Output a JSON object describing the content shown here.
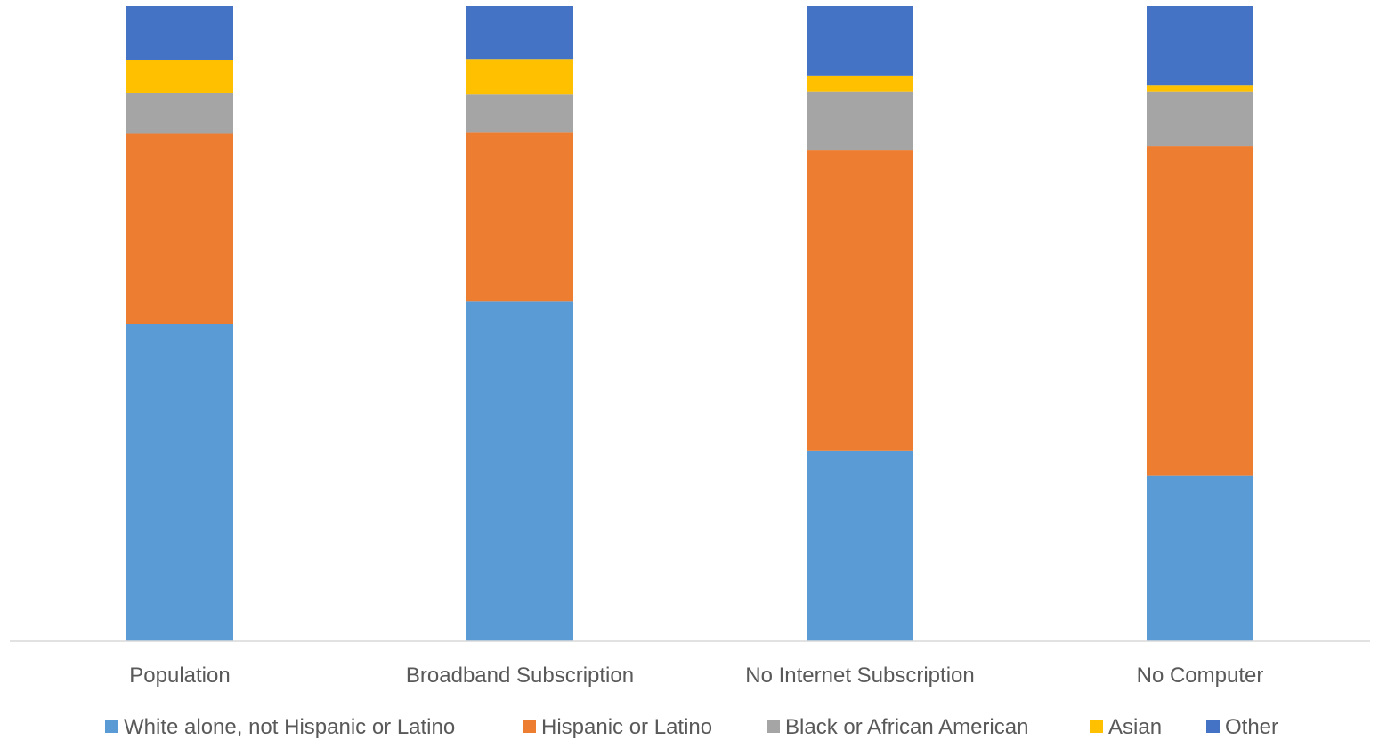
{
  "chart_data": {
    "type": "bar",
    "stacked": true,
    "normalized_percent": true,
    "title": "",
    "xlabel": "",
    "ylabel": "",
    "ylim": [
      0,
      100
    ],
    "grid": false,
    "legend_position": "bottom",
    "categories": [
      "Population",
      "Broadband Subscription",
      "No Internet Subscription",
      "No Computer"
    ],
    "series": [
      {
        "name": "White alone, not Hispanic or Latino",
        "color": "#5B9BD5",
        "values": [
          50,
          53.6,
          30,
          26.1
        ]
      },
      {
        "name": "Hispanic or Latino",
        "color": "#ED7D31",
        "values": [
          29.9,
          26.6,
          47.3,
          51.9
        ]
      },
      {
        "name": "Black or African American",
        "color": "#A5A5A5",
        "values": [
          6.5,
          5.9,
          9.3,
          8.6
        ]
      },
      {
        "name": "Asian",
        "color": "#FFC000",
        "values": [
          5.1,
          5.6,
          2.5,
          0.9
        ]
      },
      {
        "name": "Other",
        "color": "#4472C4",
        "values": [
          8.5,
          8.3,
          10.9,
          12.5
        ]
      }
    ]
  }
}
